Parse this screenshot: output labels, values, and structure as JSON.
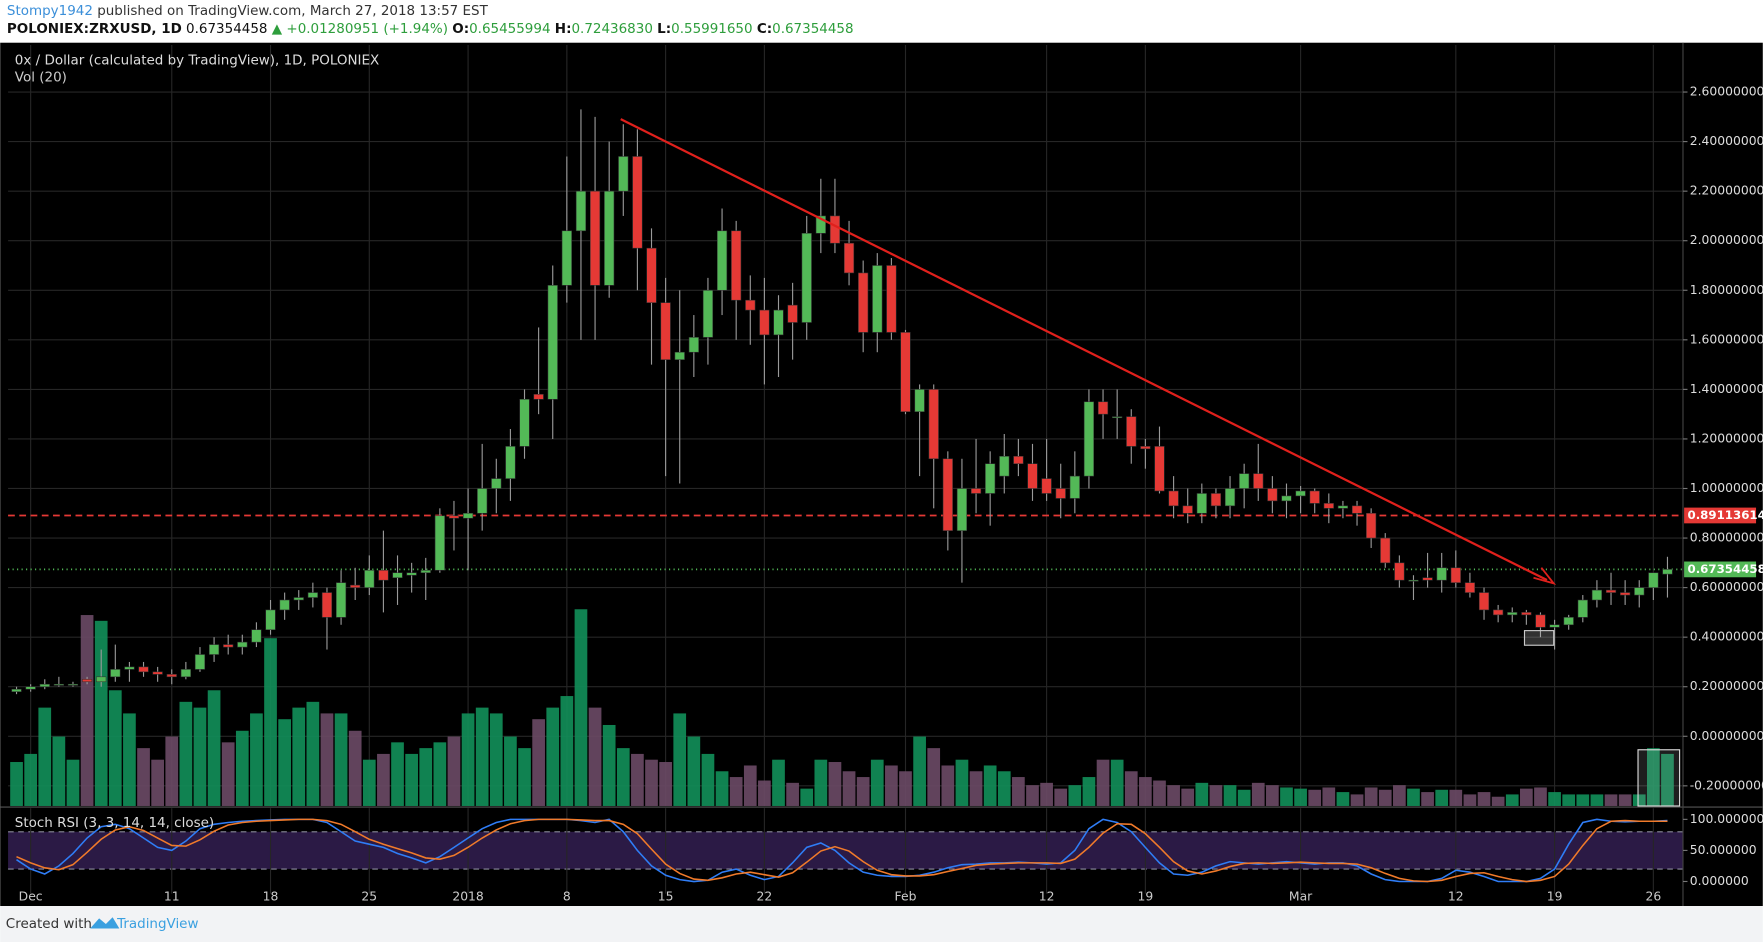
{
  "chart_data": {
    "type": "candlestick",
    "header": {
      "author": "Stompy1942",
      "published": " published on TradingView.com, March 27, 2018 13:57 EST",
      "symbol": "POLONIEX:ZRXUSD, 1D",
      "last": "0.67354458",
      "change": "▲ +0.01280951 (+1.94%)",
      "open_label": "O:",
      "open": "0.65455994",
      "high_label": "H:",
      "high": "0.72436830",
      "low_label": "L:",
      "low": "0.55991650",
      "close_label": "C:",
      "close": "0.67354458"
    },
    "title": "0x / Dollar (calculated by TradingView), 1D, POLONIEX",
    "volume_label": "Vol (20)",
    "footer": {
      "created": "Created with",
      "brand": "TradingView"
    },
    "up_color": "#53b957",
    "down_color": "#e53935",
    "volume_up_color": "#12905a",
    "volume_down_color": "#6b4a66",
    "grid": true,
    "xlim": [
      -0.6,
      118.1
    ],
    "xticks": [
      {
        "value": 1,
        "label": "Dec"
      },
      {
        "value": 11,
        "label": "11"
      },
      {
        "value": 18,
        "label": "18"
      },
      {
        "value": 25,
        "label": "25"
      },
      {
        "value": 32,
        "label": "2018"
      },
      {
        "value": 39,
        "label": "8"
      },
      {
        "value": 46,
        "label": "15"
      },
      {
        "value": 53,
        "label": "22"
      },
      {
        "value": 63,
        "label": "Feb"
      },
      {
        "value": 73,
        "label": "12"
      },
      {
        "value": 80,
        "label": "19"
      },
      {
        "value": 91,
        "label": "Mar"
      },
      {
        "value": 102,
        "label": "12"
      },
      {
        "value": 109,
        "label": "19"
      },
      {
        "value": 116,
        "label": "26"
      }
    ],
    "ylim": [
      -0.2813,
      2.79
    ],
    "yticks": [
      {
        "value": 2.6,
        "label": "2.60000000"
      },
      {
        "value": 2.4,
        "label": "2.40000000"
      },
      {
        "value": 2.2,
        "label": "2.20000000"
      },
      {
        "value": 2.0,
        "label": "2.00000000"
      },
      {
        "value": 1.8,
        "label": "1.80000000"
      },
      {
        "value": 1.6,
        "label": "1.60000000"
      },
      {
        "value": 1.4,
        "label": "1.40000000"
      },
      {
        "value": 1.2,
        "label": "1.20000000"
      },
      {
        "value": 1.0,
        "label": "1.00000000"
      },
      {
        "value": 0.8,
        "label": "0.80000000"
      },
      {
        "value": 0.6,
        "label": "0.60000000"
      },
      {
        "value": 0.4,
        "label": "0.40000000"
      },
      {
        "value": 0.2,
        "label": "0.20000000"
      },
      {
        "value": 0,
        "label": "0.00000000"
      },
      {
        "value": -0.2,
        "label": "-0.20000000"
      }
    ],
    "price_lines": [
      {
        "value": 0.89113614,
        "label": "0.89113614",
        "color": "#e53935",
        "dash": "6 4"
      },
      {
        "value": 0.67354458,
        "label": "0.67354458",
        "color": "#53b957",
        "dash": "1 3"
      }
    ],
    "candles": [
      [
        0.18,
        0.2,
        0.17,
        0.19
      ],
      [
        0.19,
        0.21,
        0.18,
        0.2
      ],
      [
        0.2,
        0.23,
        0.19,
        0.21
      ],
      [
        0.21,
        0.24,
        0.2,
        0.21
      ],
      [
        0.21,
        0.22,
        0.2,
        0.21
      ],
      [
        0.23,
        0.24,
        0.21,
        0.22
      ],
      [
        0.22,
        0.35,
        0.2,
        0.24
      ],
      [
        0.24,
        0.37,
        0.22,
        0.27
      ],
      [
        0.27,
        0.3,
        0.22,
        0.28
      ],
      [
        0.28,
        0.3,
        0.24,
        0.26
      ],
      [
        0.26,
        0.28,
        0.22,
        0.25
      ],
      [
        0.25,
        0.27,
        0.21,
        0.24
      ],
      [
        0.24,
        0.3,
        0.23,
        0.27
      ],
      [
        0.27,
        0.36,
        0.26,
        0.33
      ],
      [
        0.33,
        0.4,
        0.3,
        0.37
      ],
      [
        0.37,
        0.41,
        0.33,
        0.36
      ],
      [
        0.36,
        0.41,
        0.33,
        0.38
      ],
      [
        0.38,
        0.46,
        0.36,
        0.43
      ],
      [
        0.43,
        0.55,
        0.41,
        0.51
      ],
      [
        0.51,
        0.58,
        0.47,
        0.55
      ],
      [
        0.55,
        0.59,
        0.51,
        0.56
      ],
      [
        0.56,
        0.62,
        0.52,
        0.58
      ],
      [
        0.58,
        0.6,
        0.35,
        0.48
      ],
      [
        0.48,
        0.67,
        0.45,
        0.62
      ],
      [
        0.61,
        0.68,
        0.55,
        0.6
      ],
      [
        0.6,
        0.73,
        0.57,
        0.67
      ],
      [
        0.67,
        0.83,
        0.5,
        0.63
      ],
      [
        0.64,
        0.73,
        0.53,
        0.66
      ],
      [
        0.65,
        0.7,
        0.58,
        0.66
      ],
      [
        0.66,
        0.72,
        0.55,
        0.67
      ],
      [
        0.67,
        0.92,
        0.66,
        0.89
      ],
      [
        0.89,
        0.95,
        0.75,
        0.88
      ],
      [
        0.88,
        1.0,
        0.67,
        0.9
      ],
      [
        0.9,
        1.18,
        0.83,
        1.0
      ],
      [
        1.0,
        1.12,
        0.9,
        1.04
      ],
      [
        1.04,
        1.24,
        0.95,
        1.17
      ],
      [
        1.17,
        1.4,
        1.12,
        1.36
      ],
      [
        1.38,
        1.65,
        1.3,
        1.36
      ],
      [
        1.36,
        1.9,
        1.2,
        1.82
      ],
      [
        1.82,
        2.34,
        1.75,
        2.04
      ],
      [
        2.04,
        2.53,
        1.6,
        2.2
      ],
      [
        2.2,
        2.5,
        1.6,
        1.82
      ],
      [
        1.82,
        2.4,
        1.77,
        2.2
      ],
      [
        2.2,
        2.47,
        2.1,
        2.34
      ],
      [
        2.34,
        2.45,
        1.8,
        1.97
      ],
      [
        1.97,
        2.05,
        1.5,
        1.75
      ],
      [
        1.75,
        1.85,
        1.05,
        1.52
      ],
      [
        1.52,
        1.8,
        1.02,
        1.55
      ],
      [
        1.55,
        1.7,
        1.45,
        1.61
      ],
      [
        1.61,
        1.85,
        1.5,
        1.8
      ],
      [
        1.8,
        2.13,
        1.7,
        2.04
      ],
      [
        2.04,
        2.08,
        1.6,
        1.76
      ],
      [
        1.76,
        1.86,
        1.58,
        1.72
      ],
      [
        1.72,
        1.85,
        1.42,
        1.62
      ],
      [
        1.62,
        1.78,
        1.45,
        1.72
      ],
      [
        1.74,
        1.83,
        1.52,
        1.67
      ],
      [
        1.67,
        2.1,
        1.6,
        2.03
      ],
      [
        2.03,
        2.25,
        1.95,
        2.1
      ],
      [
        2.1,
        2.25,
        1.95,
        1.99
      ],
      [
        1.99,
        2.08,
        1.82,
        1.87
      ],
      [
        1.87,
        1.92,
        1.55,
        1.63
      ],
      [
        1.63,
        1.95,
        1.55,
        1.9
      ],
      [
        1.9,
        1.93,
        1.6,
        1.63
      ],
      [
        1.63,
        1.64,
        1.3,
        1.31
      ],
      [
        1.31,
        1.42,
        1.05,
        1.4
      ],
      [
        1.4,
        1.42,
        0.92,
        1.12
      ],
      [
        1.12,
        1.15,
        0.75,
        0.83
      ],
      [
        0.83,
        1.12,
        0.62,
        1.0
      ],
      [
        1.0,
        1.2,
        0.9,
        0.98
      ],
      [
        0.98,
        1.15,
        0.85,
        1.1
      ],
      [
        1.05,
        1.22,
        0.98,
        1.13
      ],
      [
        1.13,
        1.2,
        1.05,
        1.1
      ],
      [
        1.1,
        1.18,
        0.95,
        1.0
      ],
      [
        1.04,
        1.2,
        0.95,
        0.98
      ],
      [
        1.0,
        1.1,
        0.88,
        0.96
      ],
      [
        0.96,
        1.15,
        0.9,
        1.05
      ],
      [
        1.05,
        1.4,
        1.0,
        1.35
      ],
      [
        1.35,
        1.4,
        1.2,
        1.3
      ],
      [
        1.29,
        1.4,
        1.2,
        1.29
      ],
      [
        1.29,
        1.32,
        1.1,
        1.17
      ],
      [
        1.17,
        1.2,
        1.08,
        1.16
      ],
      [
        1.17,
        1.25,
        0.98,
        0.99
      ],
      [
        0.99,
        1.05,
        0.88,
        0.93
      ],
      [
        0.93,
        1.0,
        0.86,
        0.9
      ],
      [
        0.9,
        1.02,
        0.86,
        0.98
      ],
      [
        0.98,
        1.0,
        0.88,
        0.93
      ],
      [
        0.93,
        1.05,
        0.88,
        1.0
      ],
      [
        1.0,
        1.1,
        0.92,
        1.06
      ],
      [
        1.06,
        1.18,
        0.95,
        1.0
      ],
      [
        1.0,
        1.05,
        0.9,
        0.95
      ],
      [
        0.95,
        1.02,
        0.88,
        0.97
      ],
      [
        0.97,
        1.01,
        0.9,
        0.99
      ],
      [
        0.99,
        1.0,
        0.9,
        0.94
      ],
      [
        0.94,
        0.98,
        0.86,
        0.92
      ],
      [
        0.92,
        0.95,
        0.88,
        0.93
      ],
      [
        0.93,
        0.95,
        0.85,
        0.9
      ],
      [
        0.9,
        0.92,
        0.76,
        0.8
      ],
      [
        0.8,
        0.82,
        0.68,
        0.7
      ],
      [
        0.7,
        0.73,
        0.6,
        0.63
      ],
      [
        0.63,
        0.65,
        0.55,
        0.63
      ],
      [
        0.64,
        0.74,
        0.6,
        0.63
      ],
      [
        0.63,
        0.74,
        0.58,
        0.68
      ],
      [
        0.68,
        0.75,
        0.6,
        0.62
      ],
      [
        0.62,
        0.66,
        0.56,
        0.58
      ],
      [
        0.58,
        0.6,
        0.47,
        0.51
      ],
      [
        0.51,
        0.53,
        0.46,
        0.49
      ],
      [
        0.49,
        0.52,
        0.46,
        0.5
      ],
      [
        0.5,
        0.51,
        0.45,
        0.49
      ],
      [
        0.49,
        0.5,
        0.4,
        0.44
      ],
      [
        0.44,
        0.47,
        0.35,
        0.45
      ],
      [
        0.45,
        0.49,
        0.43,
        0.48
      ],
      [
        0.48,
        0.57,
        0.46,
        0.55
      ],
      [
        0.55,
        0.63,
        0.52,
        0.59
      ],
      [
        0.59,
        0.66,
        0.53,
        0.58
      ],
      [
        0.58,
        0.63,
        0.53,
        0.57
      ],
      [
        0.57,
        0.63,
        0.52,
        0.6
      ],
      [
        0.6,
        0.65,
        0.55,
        0.66
      ],
      [
        0.65455994,
        0.7243683,
        0.5599165,
        0.67354458
      ]
    ],
    "volume": [
      38,
      45,
      85,
      60,
      40,
      165,
      160,
      100,
      80,
      50,
      40,
      60,
      90,
      85,
      100,
      55,
      65,
      80,
      145,
      75,
      85,
      90,
      80,
      80,
      65,
      40,
      45,
      55,
      45,
      50,
      55,
      60,
      80,
      85,
      80,
      60,
      50,
      75,
      85,
      95,
      170,
      85,
      70,
      50,
      45,
      40,
      38,
      80,
      60,
      45,
      30,
      25,
      35,
      22,
      40,
      20,
      15,
      40,
      38,
      30,
      25,
      40,
      35,
      30,
      60,
      50,
      35,
      40,
      30,
      35,
      30,
      25,
      18,
      20,
      15,
      18,
      25,
      40,
      40,
      30,
      25,
      22,
      18,
      15,
      20,
      18,
      18,
      14,
      20,
      18,
      16,
      15,
      14,
      16,
      12,
      10,
      16,
      14,
      18,
      15,
      12,
      14,
      14,
      10,
      12,
      8,
      10,
      15,
      16,
      12,
      10,
      10,
      10,
      10,
      10,
      10,
      50,
      45
    ],
    "stoch_rsi": {
      "type": "line",
      "label": "Stoch RSI (3, 3, 14, 14, close)",
      "ylim": [
        -19.6,
        117.9
      ],
      "yticks": [
        {
          "value": 100,
          "label": "100.000000"
        },
        {
          "value": 50,
          "label": "50.000000"
        },
        {
          "value": 0,
          "label": "0.000000"
        }
      ],
      "bands": [
        80,
        20
      ],
      "band_color": "#2b1a45",
      "series": [
        {
          "name": "K",
          "color": "#2f7df6",
          "values": [
            35,
            20,
            12,
            25,
            45,
            70,
            88,
            92,
            85,
            70,
            55,
            50,
            65,
            85,
            92,
            95,
            97,
            98,
            99,
            100,
            100,
            100,
            95,
            80,
            65,
            60,
            55,
            45,
            38,
            30,
            40,
            55,
            70,
            85,
            95,
            100,
            100,
            100,
            100,
            100,
            98,
            95,
            100,
            80,
            50,
            25,
            10,
            3,
            0,
            2,
            15,
            20,
            10,
            3,
            8,
            30,
            55,
            62,
            50,
            30,
            15,
            10,
            8,
            8,
            10,
            15,
            22,
            27,
            28,
            30,
            30,
            31,
            30,
            28,
            30,
            50,
            85,
            100,
            95,
            80,
            55,
            30,
            12,
            10,
            15,
            25,
            32,
            30,
            28,
            30,
            32,
            30,
            28,
            30,
            30,
            25,
            12,
            3,
            0,
            0,
            0,
            5,
            18,
            15,
            8,
            0,
            0,
            0,
            5,
            20,
            60,
            95,
            100,
            97,
            96,
            97,
            97,
            98
          ]
        },
        {
          "name": "D",
          "color": "#f07a2a",
          "values": [
            40,
            30,
            22,
            19,
            27,
            47,
            68,
            83,
            88,
            82,
            70,
            58,
            57,
            67,
            81,
            91,
            95,
            97,
            98,
            99,
            100,
            100,
            98,
            92,
            80,
            68,
            60,
            53,
            46,
            38,
            36,
            42,
            55,
            70,
            83,
            93,
            98,
            100,
            100,
            100,
            99,
            98,
            98,
            92,
            77,
            52,
            28,
            13,
            4,
            2,
            6,
            12,
            15,
            11,
            7,
            14,
            31,
            49,
            56,
            49,
            32,
            18,
            11,
            9,
            9,
            11,
            16,
            21,
            26,
            28,
            29,
            30,
            30,
            30,
            29,
            36,
            55,
            78,
            93,
            92,
            77,
            55,
            32,
            17,
            12,
            17,
            24,
            29,
            30,
            29,
            30,
            31,
            30,
            29,
            29,
            28,
            22,
            13,
            5,
            1,
            0,
            2,
            8,
            13,
            14,
            8,
            3,
            0,
            2,
            8,
            28,
            58,
            85,
            97,
            98,
            97,
            97,
            97
          ]
        }
      ]
    }
  }
}
